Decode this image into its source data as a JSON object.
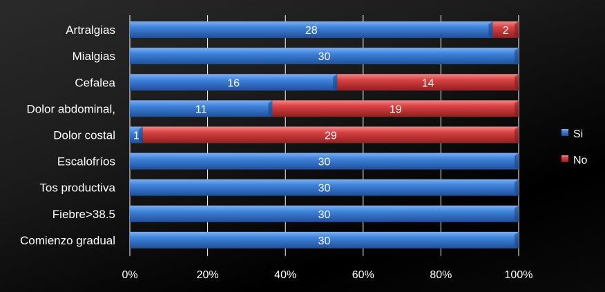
{
  "chart_data": {
    "type": "bar",
    "orientation": "horizontal",
    "stacked": "percent",
    "categories": [
      "Artralgias",
      "Mialgias",
      "Cefalea",
      "Dolor abdominal,",
      "Dolor costal",
      "Escalofríos",
      "Tos productiva",
      "Fiebre>38.5",
      "Comienzo gradual"
    ],
    "series": [
      {
        "name": "Si",
        "values": [
          28,
          30,
          16,
          11,
          1,
          30,
          30,
          30,
          30
        ],
        "color": "#3a7bd5"
      },
      {
        "name": "No",
        "values": [
          2,
          0,
          14,
          19,
          29,
          0,
          0,
          0,
          0
        ],
        "color": "#d94444"
      }
    ],
    "x_ticks": [
      "0%",
      "20%",
      "40%",
      "60%",
      "80%",
      "100%"
    ],
    "xlim": [
      0,
      100
    ],
    "grid": true,
    "legend_position": "right"
  }
}
